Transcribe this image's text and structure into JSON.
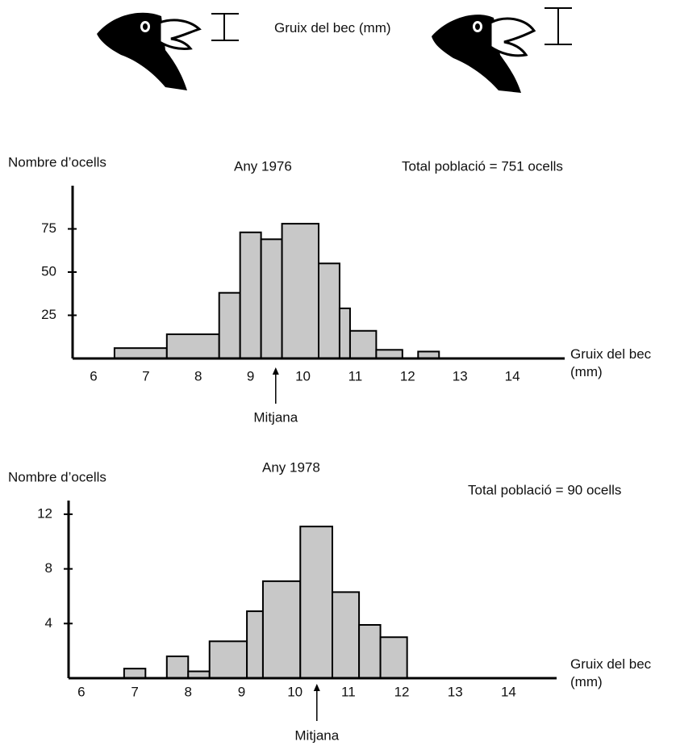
{
  "illustration": {
    "caption": "Gruix del bec (mm)"
  },
  "chart_data": [
    {
      "type": "histogram",
      "title": "Any 1976",
      "y_label": "Nombre d’ocells",
      "x_label": "Gruix del bec (mm)",
      "note": "Total població = 751 ocells",
      "bins": [
        6.4,
        7.4,
        8.4,
        8.8,
        9.2,
        9.6,
        10.3,
        10.7,
        10.9,
        11.4,
        11.9,
        12.2,
        12.6
      ],
      "values": [
        6,
        14,
        38,
        73,
        69,
        78,
        55,
        29,
        16,
        5,
        0,
        4
      ],
      "color": "#c8c8c8",
      "xlim": [
        5.6,
        15
      ],
      "xticks": [
        6,
        7,
        8,
        9,
        10,
        11,
        12,
        13,
        14
      ],
      "ylim": [
        0,
        100
      ],
      "yticks": [
        25,
        50,
        75
      ],
      "annotation": {
        "text": "Mitjana",
        "x": 9.48
      }
    },
    {
      "type": "histogram",
      "title": "Any 1978",
      "y_label": "Nombre d’ocells",
      "x_label": "Gruix del bec (mm)",
      "note": "Total població = 90 ocells",
      "bins": [
        6.8,
        7.2,
        7.6,
        8.0,
        8.4,
        9.1,
        9.4,
        10.1,
        10.7,
        11.2,
        11.6,
        12.1
      ],
      "values": [
        0.7,
        0,
        1.6,
        0.5,
        2.7,
        4.9,
        7.1,
        11.1,
        6.3,
        3.9,
        3.0
      ],
      "color": "#c8c8c8",
      "xlim": [
        5.76,
        14.9
      ],
      "xticks": [
        6,
        7,
        8,
        9,
        10,
        11,
        12,
        13,
        14
      ],
      "ylim": [
        0,
        13
      ],
      "yticks": [
        4,
        8,
        12
      ],
      "annotation": {
        "text": "Mitjana",
        "x": 10.41
      }
    }
  ]
}
